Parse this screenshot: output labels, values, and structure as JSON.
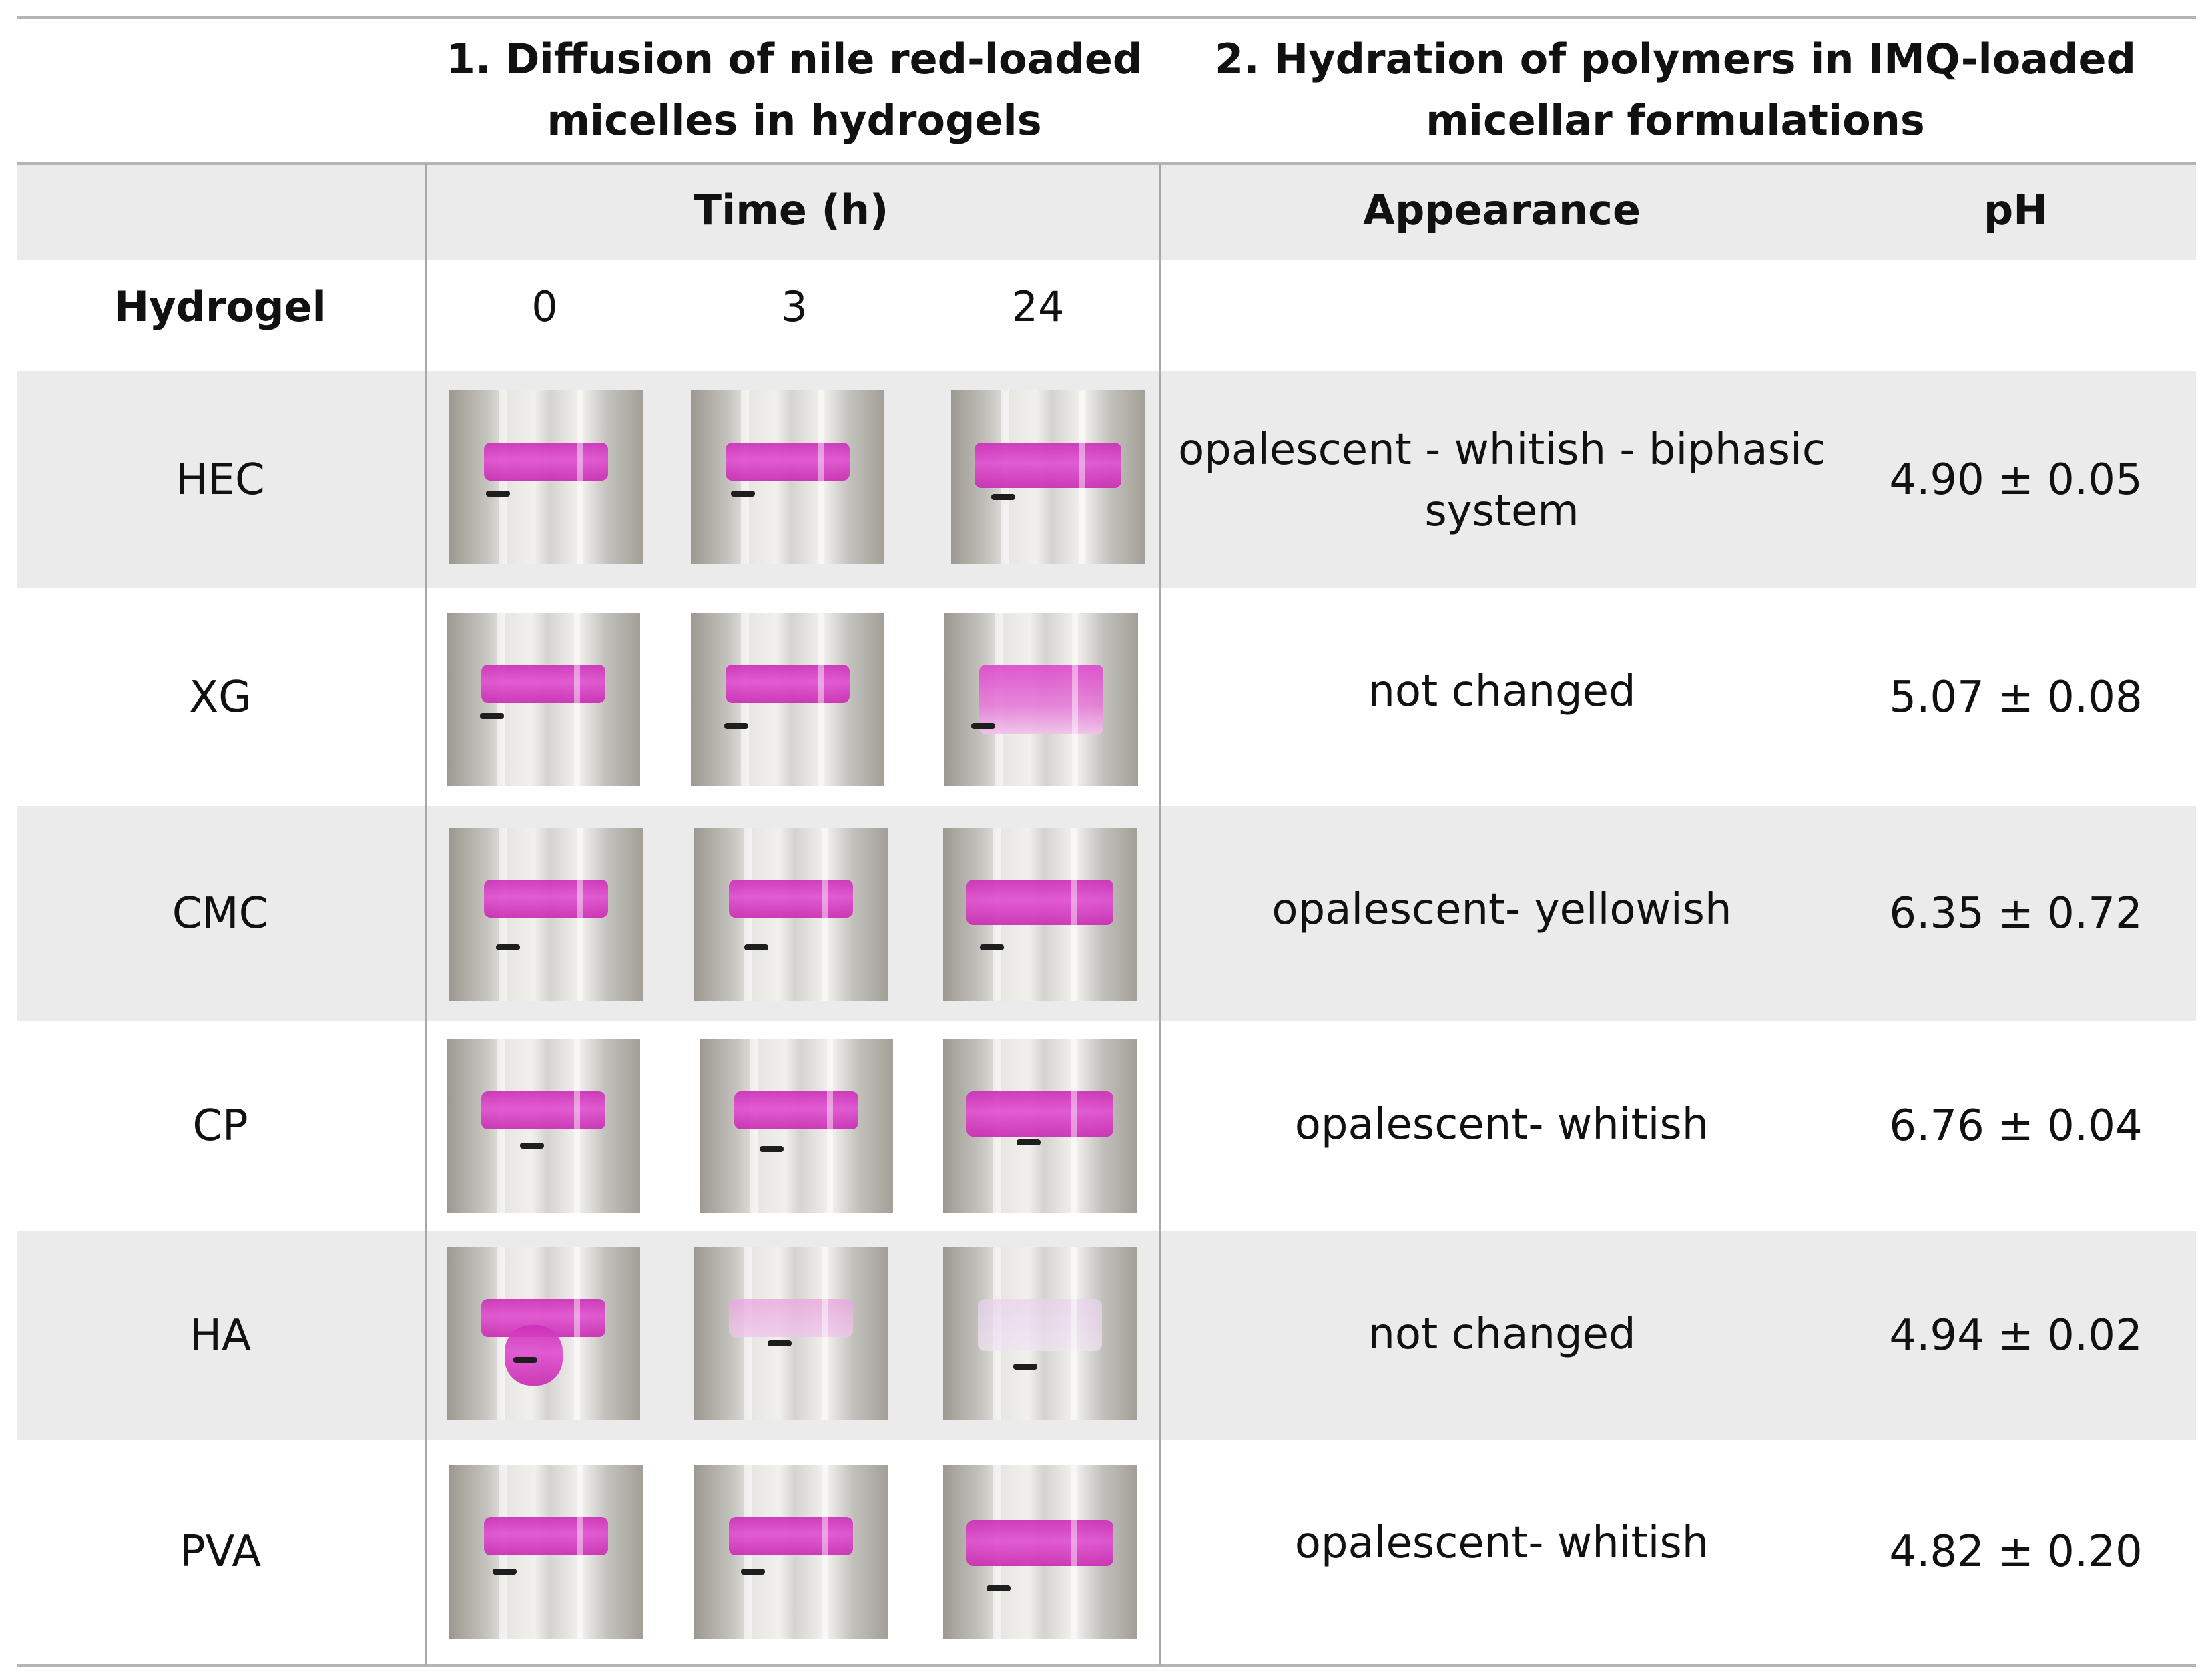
{
  "table": {
    "group_header_1": "1. Diffusion of nile red-loaded micelles in hydrogels",
    "group_header_2": "2. Hydration of polymers in IMQ-loaded micellar formulations",
    "time_header": "Time (h)",
    "appearance_header": "Appearance",
    "ph_header": "pH",
    "hydrogel_header": "Hydrogel",
    "time_points": [
      "0",
      "3",
      "24"
    ],
    "rows": [
      {
        "hydrogel": "HEC",
        "appearance": "opalescent - whitish - biphasic system",
        "ph": "4.90 ± 0.05"
      },
      {
        "hydrogel": "XG",
        "appearance": "not changed",
        "ph": "5.07 ± 0.08"
      },
      {
        "hydrogel": "CMC",
        "appearance": "opalescent- yellowish",
        "ph": "6.35 ± 0.72"
      },
      {
        "hydrogel": "CP",
        "appearance": "opalescent- whitish",
        "ph": "6.76 ± 0.04"
      },
      {
        "hydrogel": "HA",
        "appearance": "not changed",
        "ph": "4.94 ± 0.02"
      },
      {
        "hydrogel": "PVA",
        "appearance": "opalescent- whitish",
        "ph": "4.82 ± 0.20"
      }
    ]
  }
}
